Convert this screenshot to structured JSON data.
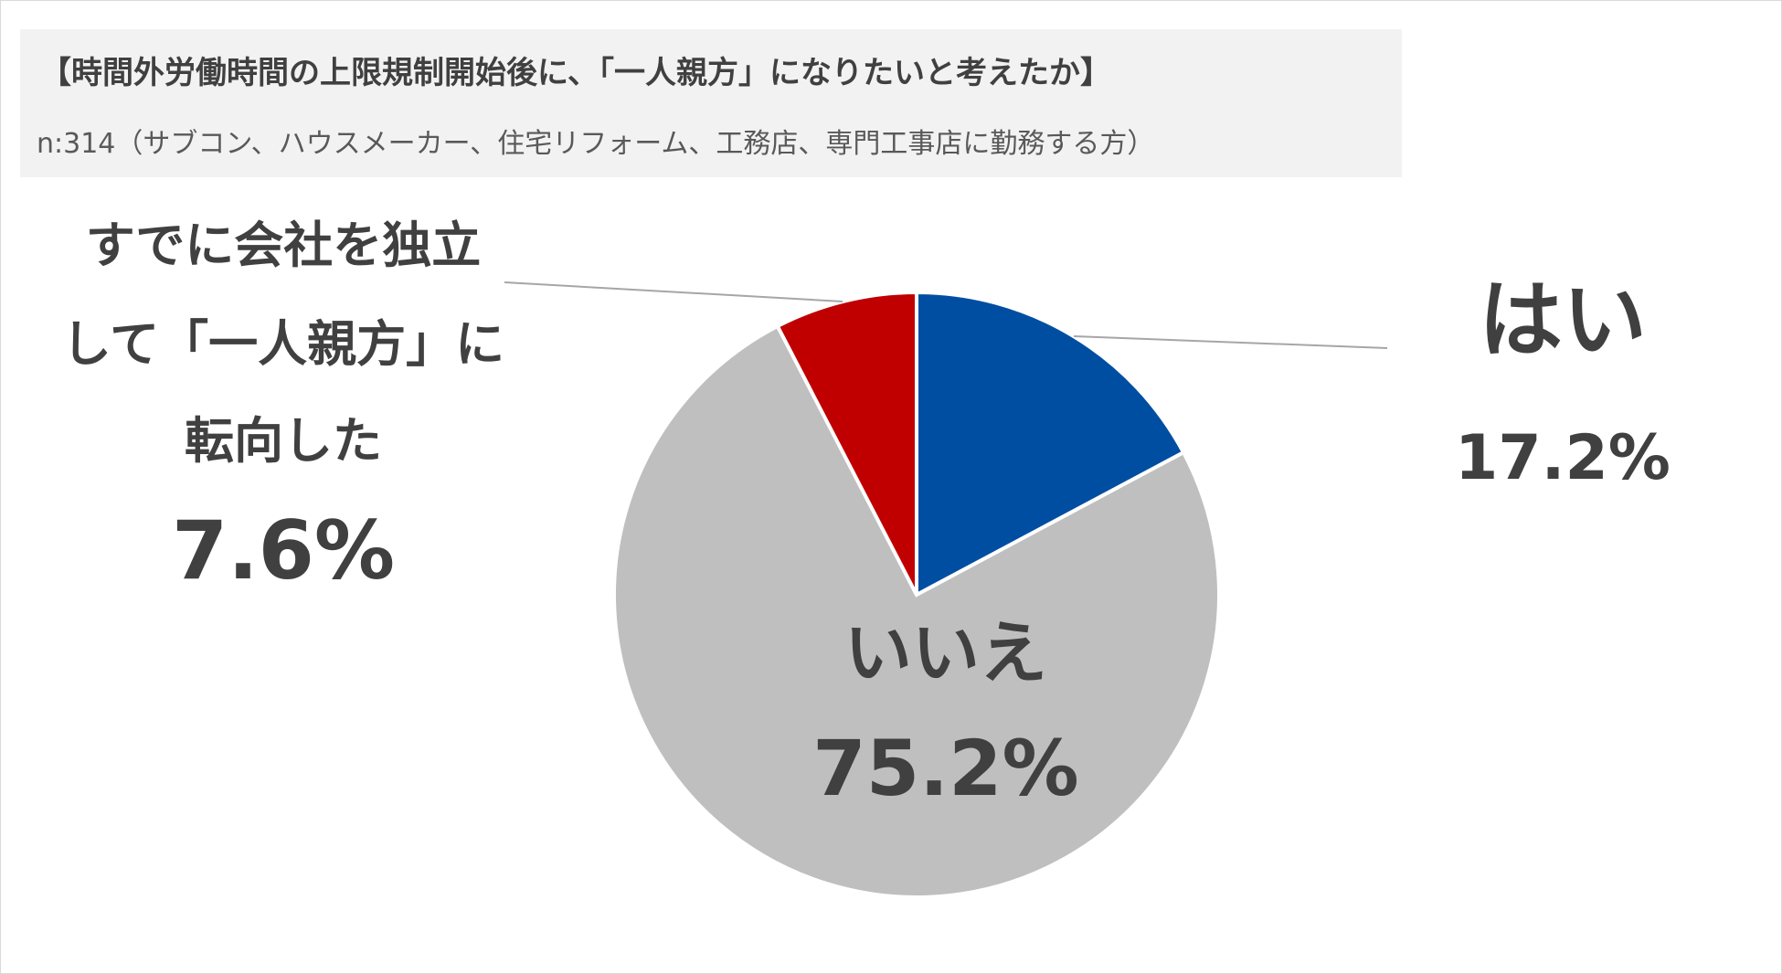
{
  "chart_data": {
    "type": "pie",
    "title": "【時間外労働時間の上限規制開始後に、「一人親方」になりたいと考えたか】",
    "subtitle": "n:314（サブコン、ハウスメーカー、住宅リフォーム、工務店、専門工事店に勤務する方）",
    "slices": [
      {
        "name": "はい",
        "value": 17.2,
        "label": "17.2%",
        "color": "#004EA2"
      },
      {
        "name": "いいえ",
        "value": 75.2,
        "label": "75.2%",
        "color": "#BFBFBF"
      },
      {
        "name_lines": [
          "すでに会社を独立",
          "して「一人親方」に",
          "転向した"
        ],
        "value": 7.6,
        "label": "7.6%",
        "color": "#C00000"
      }
    ],
    "start_angle_deg": 0,
    "direction": "clockwise"
  }
}
